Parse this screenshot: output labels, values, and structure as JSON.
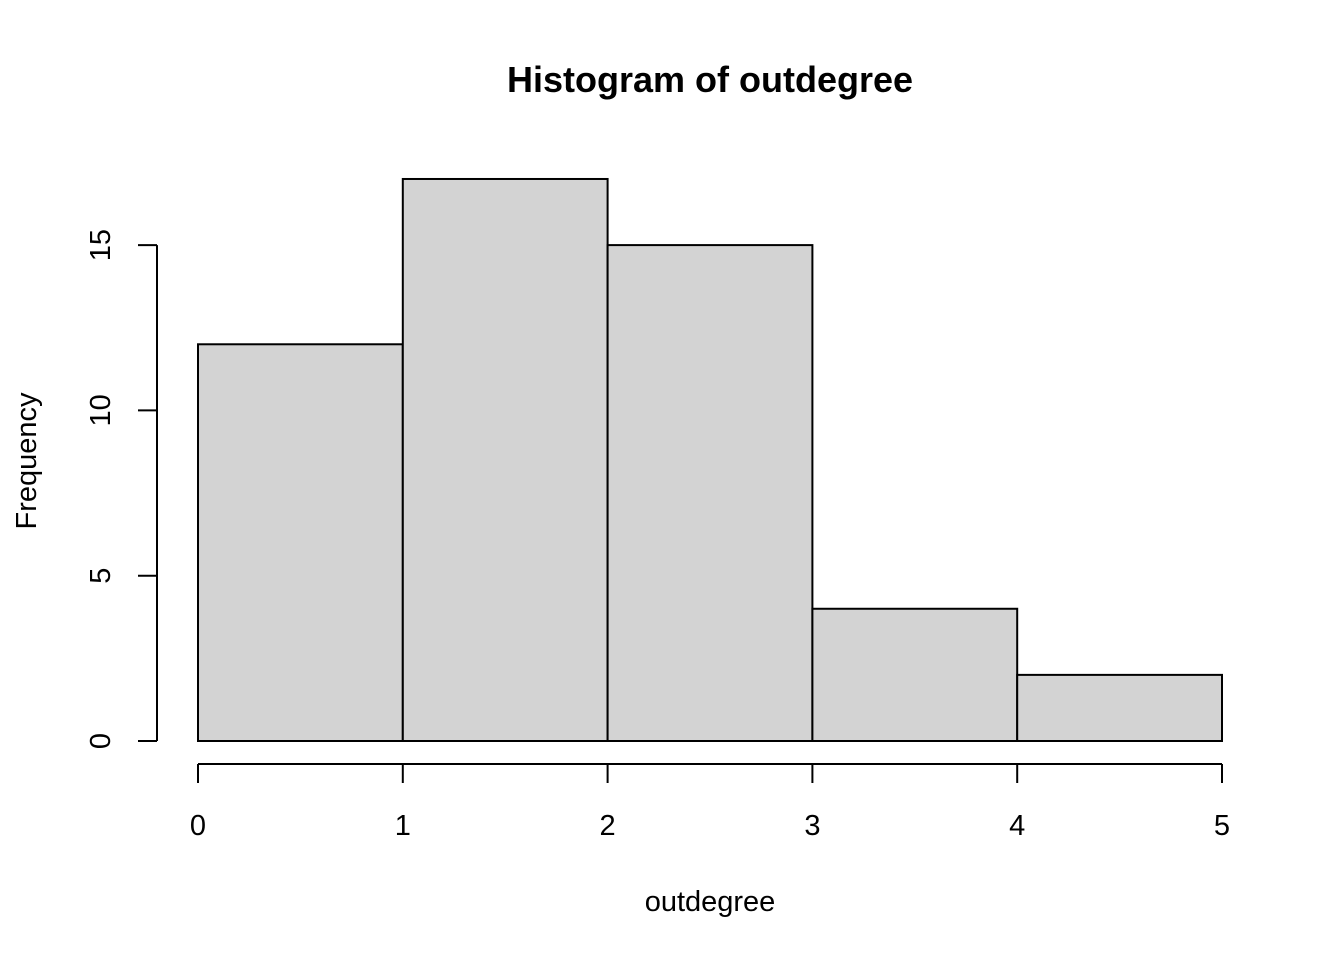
{
  "chart_data": {
    "type": "bar",
    "title": "Histogram of outdegree",
    "xlabel": "outdegree",
    "ylabel": "Frequency",
    "bins": [
      {
        "from": 0,
        "to": 1,
        "count": 12
      },
      {
        "from": 1,
        "to": 2,
        "count": 17
      },
      {
        "from": 2,
        "to": 3,
        "count": 15
      },
      {
        "from": 3,
        "to": 4,
        "count": 4
      },
      {
        "from": 4,
        "to": 5,
        "count": 2
      }
    ],
    "x_ticks": [
      0,
      1,
      2,
      3,
      4,
      5
    ],
    "y_ticks": [
      0,
      5,
      10,
      15
    ],
    "xlim": [
      0,
      5
    ],
    "ylim": [
      0,
      17
    ],
    "grid": false,
    "legend": "none",
    "colors": {
      "bar_fill": "#d3d3d3",
      "bar_stroke": "#000000",
      "background": "#ffffff"
    }
  }
}
